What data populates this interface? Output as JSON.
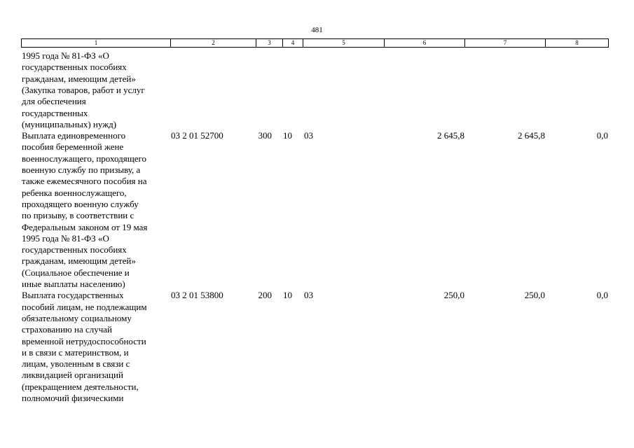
{
  "page_number": "481",
  "table": {
    "header": [
      "1",
      "2",
      "3",
      "4",
      "5",
      "6",
      "7",
      "8"
    ],
    "rows": [
      {
        "name": [
          "1995 года № 81-ФЗ «О",
          "государственных пособиях",
          "гражданам, имеющим детей»",
          "(Закупка товаров, работ и услуг",
          "для обеспечения",
          "государственных",
          "(муниципальных) нужд)"
        ]
      },
      {
        "name": [
          "Выплата единовременного",
          "пособия беременной жене",
          "военнослужащего, проходящего",
          "военную службу по призыву, а",
          "также ежемесячного пособия на",
          "ребенка военнослужащего,",
          "проходящего военную службу",
          "по призыву, в соответствии с",
          "Федеральным законом от 19 мая",
          "1995 года № 81-ФЗ «О",
          "государственных пособиях",
          "гражданам, имеющим детей»",
          "(Социальное обеспечение и",
          "иные выплаты населению)"
        ],
        "code": "03 2 01 52700",
        "c3": "300",
        "c4": "10",
        "c5": "03",
        "c6": "2 645,8",
        "c7": "2 645,8",
        "c8": "0,0"
      },
      {
        "name": [
          "Выплата государственных",
          "пособий лицам, не подлежащим",
          "обязательному социальному",
          "страхованию на случай",
          "временной нетрудоспособности",
          "и в связи с материнством, и",
          "лицам, уволенным в связи с",
          "ликвидацией организаций",
          "(прекращением деятельности,",
          "полномочий физическими"
        ],
        "code": "03 2 01 53800",
        "c3": "200",
        "c4": "10",
        "c5": "03",
        "c6": "250,0",
        "c7": "250,0",
        "c8": "0,0"
      }
    ]
  }
}
